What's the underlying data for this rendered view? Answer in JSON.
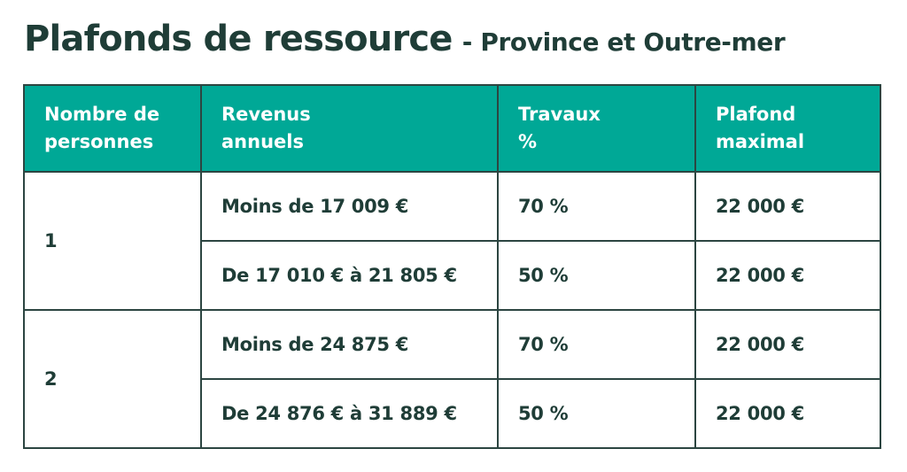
{
  "title": {
    "main": "Plafonds de ressource",
    "sub": "- Province et Outre-mer"
  },
  "table": {
    "headers": [
      [
        "Nombre de",
        "personnes"
      ],
      [
        "Revenus",
        "annuels"
      ],
      [
        "Travaux",
        "%"
      ],
      [
        "Plafond",
        "maximal"
      ]
    ],
    "groups": [
      {
        "persons": "1",
        "rows": [
          {
            "revenus": "Moins de 17 009 €",
            "travaux": "70 %",
            "plafond": "22 000 €"
          },
          {
            "revenus": "De 17 010 € à 21 805 €",
            "travaux": "50 %",
            "plafond": "22 000 €"
          }
        ]
      },
      {
        "persons": "2",
        "rows": [
          {
            "revenus": "Moins de 24 875 €",
            "travaux": "70 %",
            "plafond": "22 000 €"
          },
          {
            "revenus": "De 24 876 € à 31 889 €",
            "travaux": "50 %",
            "plafond": "22 000 €"
          }
        ]
      }
    ]
  },
  "colors": {
    "header_bg": "#00a896",
    "header_text": "#ffffff",
    "text": "#1f3d37",
    "border": "#2c4541"
  }
}
